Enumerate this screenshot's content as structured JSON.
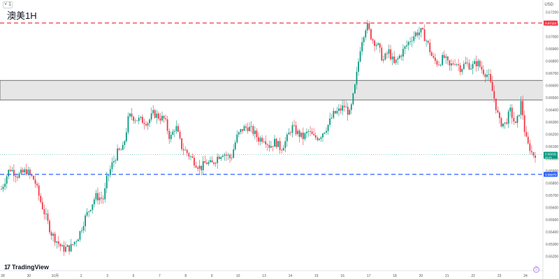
{
  "header": {
    "collapse_label": "˅ 1",
    "symbol_title": "澳美1H",
    "currency": "USD"
  },
  "branding": {
    "logo_mark": "17",
    "logo_text": "TradingView"
  },
  "chart_data": {
    "type": "candlestick",
    "title": "澳美1H",
    "currency": "USD",
    "ylim": [
      0.6515,
      0.6723
    ],
    "y_ticks": [
      "0.67200",
      "0.67100",
      "0.67000",
      "0.66900",
      "0.66800",
      "0.66700",
      "0.66600",
      "0.66500",
      "0.66400",
      "0.66300",
      "0.66200",
      "0.66100",
      "0.66000",
      "0.65900",
      "0.65800",
      "0.65700",
      "0.65600",
      "0.65500",
      "0.65400",
      "0.65300",
      "0.65200"
    ],
    "x_ticks": [
      "28",
      "30",
      "10月",
      "2",
      "3",
      "6",
      "7",
      "8",
      "9",
      "10",
      "13",
      "14",
      "15",
      "16",
      "17",
      "18",
      "20",
      "21",
      "22",
      "23",
      "24"
    ],
    "grid": false,
    "levels": [
      {
        "name": "resistance",
        "price": "0.67110",
        "color": "#f23645",
        "style": "dashed"
      },
      {
        "name": "support",
        "price": "0.65870",
        "color": "#2962ff",
        "style": "dashed"
      }
    ],
    "zone": {
      "from": 0.6648,
      "to": 0.6664,
      "color": "#e6e6e6"
    },
    "last_price": {
      "value": "0.66032",
      "sub": "34:51",
      "color": "#089981"
    },
    "up_color": "#089981",
    "down_color": "#f23645",
    "anchors": [
      [
        0,
        0.6575
      ],
      [
        3,
        0.6592
      ],
      [
        6,
        0.6586
      ],
      [
        9,
        0.659
      ],
      [
        12,
        0.6582
      ],
      [
        14,
        0.6566
      ],
      [
        18,
        0.6539
      ],
      [
        22,
        0.6526
      ],
      [
        25,
        0.6527
      ],
      [
        28,
        0.6537
      ],
      [
        30,
        0.655
      ],
      [
        34,
        0.6569
      ],
      [
        37,
        0.6567
      ],
      [
        38,
        0.6582
      ],
      [
        40,
        0.6595
      ],
      [
        42,
        0.6605
      ],
      [
        44,
        0.6608
      ],
      [
        46,
        0.6634
      ],
      [
        47,
        0.6635
      ],
      [
        49,
        0.6632
      ],
      [
        51,
        0.6631
      ],
      [
        53,
        0.663
      ],
      [
        55,
        0.6637
      ],
      [
        57,
        0.6634
      ],
      [
        59,
        0.6632
      ],
      [
        61,
        0.6616
      ],
      [
        63,
        0.6627
      ],
      [
        65,
        0.661
      ],
      [
        67,
        0.6605
      ],
      [
        70,
        0.6597
      ],
      [
        72,
        0.6592
      ],
      [
        74,
        0.6597
      ],
      [
        76,
        0.6595
      ],
      [
        78,
        0.6601
      ],
      [
        80,
        0.6605
      ],
      [
        83,
        0.66
      ],
      [
        85,
        0.6617
      ],
      [
        87,
        0.6624
      ],
      [
        89,
        0.6626
      ],
      [
        91,
        0.6622
      ],
      [
        93,
        0.6616
      ],
      [
        95,
        0.6617
      ],
      [
        97,
        0.661
      ],
      [
        99,
        0.6614
      ],
      [
        101,
        0.6608
      ],
      [
        103,
        0.6615
      ],
      [
        105,
        0.6626
      ],
      [
        107,
        0.6621
      ],
      [
        109,
        0.6617
      ],
      [
        111,
        0.6622
      ],
      [
        113,
        0.6617
      ],
      [
        115,
        0.6618
      ],
      [
        118,
        0.6627
      ],
      [
        120,
        0.6636
      ],
      [
        122,
        0.6639
      ],
      [
        124,
        0.6643
      ],
      [
        126,
        0.6636
      ],
      [
        128,
        0.6661
      ],
      [
        130,
        0.6695
      ],
      [
        132,
        0.671
      ],
      [
        134,
        0.6698
      ],
      [
        136,
        0.6693
      ],
      [
        138,
        0.668
      ],
      [
        140,
        0.6688
      ],
      [
        142,
        0.6677
      ],
      [
        144,
        0.6684
      ],
      [
        146,
        0.6691
      ],
      [
        148,
        0.6698
      ],
      [
        150,
        0.6703
      ],
      [
        152,
        0.6704
      ],
      [
        154,
        0.6695
      ],
      [
        156,
        0.6681
      ],
      [
        158,
        0.6678
      ],
      [
        160,
        0.6683
      ],
      [
        162,
        0.6675
      ],
      [
        164,
        0.668
      ],
      [
        166,
        0.6674
      ],
      [
        168,
        0.6678
      ],
      [
        170,
        0.6675
      ],
      [
        172,
        0.6679
      ],
      [
        174,
        0.6672
      ],
      [
        176,
        0.6668
      ],
      [
        178,
        0.6651
      ],
      [
        180,
        0.663
      ],
      [
        182,
        0.6628
      ],
      [
        184,
        0.6639
      ],
      [
        186,
        0.6626
      ],
      [
        188,
        0.6647
      ],
      [
        189,
        0.6625
      ],
      [
        190,
        0.6612
      ],
      [
        191,
        0.6609
      ],
      [
        192,
        0.6603
      ],
      [
        193,
        0.6604
      ]
    ]
  }
}
